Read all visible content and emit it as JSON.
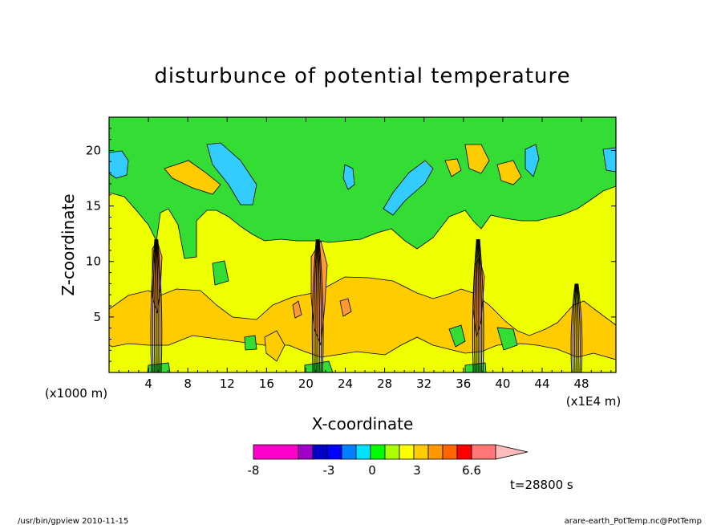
{
  "chart_data": {
    "type": "heatmap",
    "title": "disturbunce of potential temperature",
    "xlabel": "X-coordinate",
    "ylabel": "Z-coordinate",
    "x_unit_left": "(x1000 m)",
    "x_unit_right": "(x1E4 m)",
    "xlim": [
      0,
      51.5
    ],
    "ylim": [
      0,
      23
    ],
    "x_ticks": [
      "4",
      "8",
      "12",
      "16",
      "20",
      "24",
      "28",
      "32",
      "36",
      "40",
      "44",
      "48"
    ],
    "y_ticks": [
      "5",
      "10",
      "15",
      "20"
    ],
    "colorbar": {
      "labels": [
        "-8",
        "-3",
        "0",
        "3",
        "6.6"
      ],
      "colors": [
        "#ff00cc",
        "#a000c8",
        "#0000c8",
        "#0000ff",
        "#0080ff",
        "#00e0ff",
        "#00ff00",
        "#aaff00",
        "#ffff00",
        "#ffcc00",
        "#ff9900",
        "#ff6600",
        "#ff0000",
        "#ff7777",
        "#ffbbbb"
      ]
    },
    "fields": {
      "background": "#eeff00",
      "upper_layer": "#33dd33",
      "warm": "#ffcc00",
      "cool": "#33ccff",
      "hot": "#ff9933"
    },
    "towers_x": [
      4.8,
      21.2,
      37.5,
      47.5
    ]
  },
  "time_label": "t=28800 s",
  "footer_left": "/usr/bin/gpview  2010-11-15",
  "footer_right": "arare-earth_PotTemp.nc@PotTemp"
}
